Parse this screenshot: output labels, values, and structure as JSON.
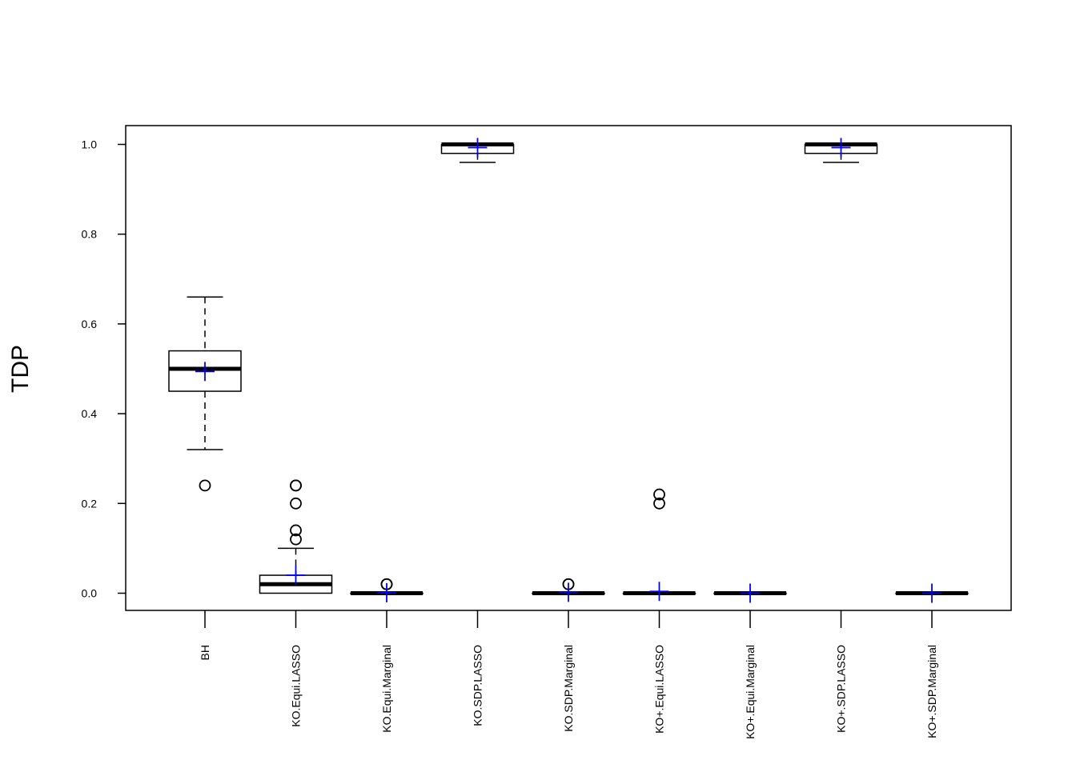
{
  "chart_data": {
    "type": "boxplot",
    "title": "",
    "xlabel": "",
    "ylabel": "TDP",
    "ylim": [
      -0.04,
      1.04
    ],
    "yticks": [
      0.0,
      0.2,
      0.4,
      0.6,
      0.8,
      1.0
    ],
    "ytick_labels": [
      "0.0",
      "0.2",
      "0.4",
      "0.6",
      "0.8",
      "1.0"
    ],
    "grid": false,
    "colors": {
      "box": "#000000",
      "mean_marker": "#0000ff"
    },
    "categories": [
      "BH",
      "KO.Equi.LASSO",
      "KO.Equi.Marginal",
      "KO.SDP.LASSO",
      "KO.SDP.Marginal",
      "KO+.Equi.LASSO",
      "KO+.Equi.Marginal",
      "KO+.SDP.LASSO",
      "KO+.SDP.Marginal"
    ],
    "boxes": [
      {
        "label": "BH",
        "whisker_low": 0.32,
        "q1": 0.45,
        "median": 0.5,
        "q3": 0.54,
        "whisker_high": 0.66,
        "mean": 0.494,
        "outliers": [
          0.24
        ]
      },
      {
        "label": "KO.Equi.LASSO",
        "whisker_low": 0.0,
        "q1": 0.0,
        "median": 0.02,
        "q3": 0.04,
        "whisker_high": 0.1,
        "mean": 0.04,
        "outliers": [
          0.12,
          0.14,
          0.2,
          0.24,
          0.24
        ]
      },
      {
        "label": "KO.Equi.Marginal",
        "whisker_low": 0.0,
        "q1": 0.0,
        "median": 0.0,
        "q3": 0.0,
        "whisker_high": 0.0,
        "mean": 0.001,
        "outliers": [
          0.02,
          0.02
        ]
      },
      {
        "label": "KO.SDP.LASSO",
        "whisker_low": 0.96,
        "q1": 0.98,
        "median": 1.0,
        "q3": 1.0,
        "whisker_high": 1.0,
        "mean": 0.993,
        "outliers": []
      },
      {
        "label": "KO.SDP.Marginal",
        "whisker_low": 0.0,
        "q1": 0.0,
        "median": 0.0,
        "q3": 0.0,
        "whisker_high": 0.0,
        "mean": 0.002,
        "outliers": [
          0.02,
          0.02
        ]
      },
      {
        "label": "KO+.Equi.LASSO",
        "whisker_low": 0.0,
        "q1": 0.0,
        "median": 0.0,
        "q3": 0.0,
        "whisker_high": 0.0,
        "mean": 0.004,
        "outliers": [
          0.2,
          0.22
        ]
      },
      {
        "label": "KO+.Equi.Marginal",
        "whisker_low": 0.0,
        "q1": 0.0,
        "median": 0.0,
        "q3": 0.0,
        "whisker_high": 0.0,
        "mean": 0.0,
        "outliers": []
      },
      {
        "label": "KO+.SDP.LASSO",
        "whisker_low": 0.96,
        "q1": 0.98,
        "median": 1.0,
        "q3": 1.0,
        "whisker_high": 1.0,
        "mean": 0.993,
        "outliers": []
      },
      {
        "label": "KO+.SDP.Marginal",
        "whisker_low": 0.0,
        "q1": 0.0,
        "median": 0.0,
        "q3": 0.0,
        "whisker_high": 0.0,
        "mean": 0.0,
        "outliers": []
      }
    ]
  }
}
